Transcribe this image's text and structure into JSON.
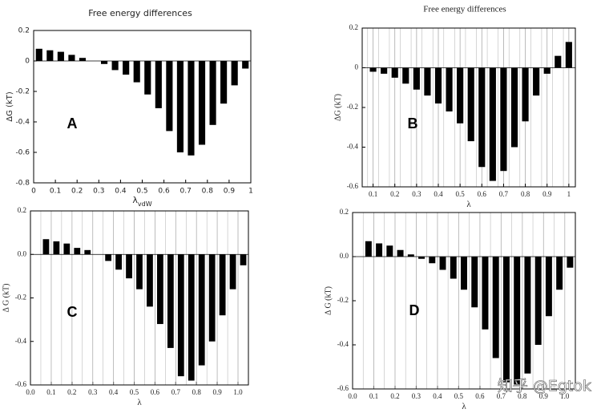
{
  "chart_data": [
    {
      "type": "bar",
      "title": "Free energy differences",
      "ylabel": "ΔG (kT)",
      "xlabel": "λ",
      "xlabel_sub": "vdW",
      "annotation": "A",
      "x": [
        0.025,
        0.075,
        0.125,
        0.175,
        0.225,
        0.275,
        0.325,
        0.375,
        0.425,
        0.475,
        0.525,
        0.575,
        0.625,
        0.675,
        0.725,
        0.775,
        0.825,
        0.875,
        0.925,
        0.975
      ],
      "values": [
        0.08,
        0.07,
        0.06,
        0.04,
        0.02,
        0.0,
        -0.02,
        -0.06,
        -0.09,
        -0.14,
        -0.22,
        -0.31,
        -0.46,
        -0.6,
        -0.62,
        -0.55,
        -0.42,
        -0.28,
        -0.16,
        -0.05
      ],
      "color": "#000000",
      "xlim": [
        0,
        1
      ],
      "ylim": [
        -0.8,
        0.2
      ],
      "xticks": [
        0,
        0.1,
        0.2,
        0.3,
        0.4,
        0.5,
        0.6,
        0.7,
        0.8,
        0.9,
        1
      ],
      "yticks": [
        -0.8,
        -0.6,
        -0.4,
        -0.2,
        0,
        0.2
      ],
      "grid": false
    },
    {
      "type": "bar",
      "title": "Free energy differences",
      "ylabel": "ΔG (kT)",
      "xlabel": "λ",
      "annotation": "B",
      "x": [
        0.1,
        0.15,
        0.2,
        0.25,
        0.3,
        0.35,
        0.4,
        0.45,
        0.5,
        0.55,
        0.6,
        0.65,
        0.7,
        0.75,
        0.8,
        0.85,
        0.9,
        0.95,
        1.0
      ],
      "values": [
        -0.02,
        -0.03,
        -0.05,
        -0.08,
        -0.11,
        -0.14,
        -0.18,
        -0.22,
        -0.28,
        -0.37,
        -0.5,
        -0.57,
        -0.52,
        -0.4,
        -0.27,
        -0.14,
        -0.03,
        0.06,
        0.13
      ],
      "color": "#000000",
      "xlim": [
        0.05,
        1.03
      ],
      "ylim": [
        -0.6,
        0.2
      ],
      "xticks": [
        0.1,
        0.2,
        0.3,
        0.4,
        0.5,
        0.6,
        0.7,
        0.8,
        0.9,
        1
      ],
      "yticks": [
        -0.6,
        -0.4,
        -0.2,
        0,
        0.2
      ],
      "grid": true
    },
    {
      "type": "bar",
      "ylabel": "Δ G (kT)",
      "xlabel": "λ",
      "annotation": "C",
      "x": [
        0.075,
        0.125,
        0.175,
        0.225,
        0.275,
        0.325,
        0.375,
        0.425,
        0.475,
        0.525,
        0.575,
        0.625,
        0.675,
        0.725,
        0.775,
        0.825,
        0.875,
        0.925,
        0.975,
        1.025
      ],
      "values": [
        0.07,
        0.06,
        0.05,
        0.03,
        0.02,
        0.0,
        -0.03,
        -0.07,
        -0.11,
        -0.16,
        -0.24,
        -0.32,
        -0.43,
        -0.56,
        -0.58,
        -0.51,
        -0.4,
        -0.28,
        -0.16,
        -0.05
      ],
      "color": "#000000",
      "xlim": [
        0,
        1.05
      ],
      "ylim": [
        -0.6,
        0.2
      ],
      "xticks": [
        {
          "value": 0,
          "label": "0.0"
        },
        0.1,
        0.2,
        0.3,
        0.4,
        0.5,
        0.6,
        0.7,
        0.8,
        0.9,
        {
          "value": 1,
          "label": "1.0"
        }
      ],
      "yticks": [
        -0.6,
        -0.4,
        -0.2,
        {
          "value": 0,
          "label": "0.0"
        },
        0.2
      ],
      "grid": true
    },
    {
      "type": "bar",
      "ylabel": "Δ G (kT)",
      "xlabel": "λ",
      "annotation": "D",
      "watermark": "知乎 @Egtok",
      "x": [
        0.075,
        0.125,
        0.175,
        0.225,
        0.275,
        0.325,
        0.375,
        0.425,
        0.475,
        0.525,
        0.575,
        0.625,
        0.675,
        0.725,
        0.775,
        0.825,
        0.875,
        0.925,
        0.975,
        1.025
      ],
      "values": [
        0.07,
        0.06,
        0.05,
        0.03,
        0.01,
        -0.01,
        -0.03,
        -0.06,
        -0.1,
        -0.15,
        -0.23,
        -0.33,
        -0.46,
        -0.57,
        -0.58,
        -0.53,
        -0.4,
        -0.27,
        -0.15,
        -0.05
      ],
      "color": "#000000",
      "xlim": [
        0,
        1.05
      ],
      "ylim": [
        -0.6,
        0.2
      ],
      "xticks": [
        {
          "value": 0,
          "label": "0.0"
        },
        0.1,
        0.2,
        0.3,
        0.4,
        0.5,
        0.6,
        0.7,
        0.8,
        0.9,
        {
          "value": 1,
          "label": "1.0"
        }
      ],
      "yticks": [
        -0.6,
        -0.4,
        -0.2,
        {
          "value": 0,
          "label": "0.0"
        },
        0.2
      ],
      "grid": true
    }
  ]
}
